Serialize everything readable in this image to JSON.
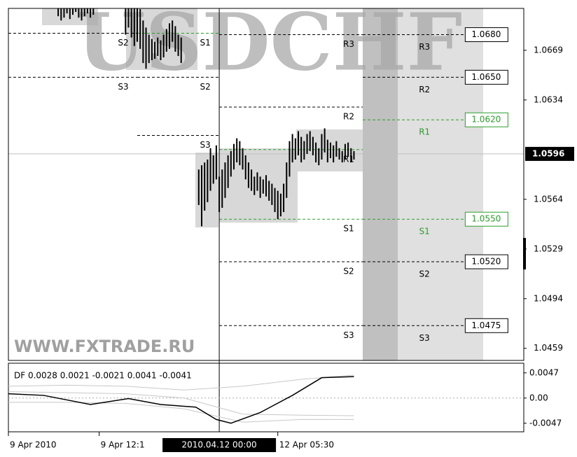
{
  "chart_data": [
    {
      "type": "hilo",
      "title": "USDCHF",
      "watermark": "WWW.FXTRADE.RU",
      "color": "#000000",
      "x": [
        17,
        18,
        19,
        20,
        21,
        22,
        23,
        24,
        25,
        26,
        27,
        28,
        29,
        40,
        41,
        42,
        43,
        44,
        45,
        46,
        47,
        48,
        49,
        50,
        51,
        52,
        53,
        54,
        55,
        56,
        57,
        58,
        59,
        65,
        66,
        67,
        68,
        69,
        70,
        71,
        72,
        73,
        74,
        75,
        76,
        77,
        78,
        79,
        80,
        81,
        82,
        83,
        84,
        85,
        86,
        87,
        88,
        89,
        90,
        91,
        92,
        93,
        94,
        95,
        96,
        97,
        98,
        99,
        100,
        101,
        102,
        103,
        104,
        105,
        106,
        107,
        108,
        109,
        110,
        111,
        112,
        113,
        114,
        115,
        116,
        117,
        118
      ],
      "highs": [
        1.0705,
        1.0705,
        1.0705,
        1.0705,
        1.0705,
        1.0705,
        1.0705,
        1.0705,
        1.0705,
        1.0705,
        1.0705,
        1.0705,
        1.0705,
        1.0705,
        1.0705,
        1.0705,
        1.07,
        1.0702,
        1.0698,
        1.069,
        1.0685,
        1.068,
        1.0677,
        1.0675,
        1.0678,
        1.0676,
        1.068,
        1.0684,
        1.0688,
        1.069,
        1.0686,
        1.068,
        1.0678,
        1.0585,
        1.0588,
        1.059,
        1.0592,
        1.06,
        1.0595,
        1.0602,
        1.058,
        1.0585,
        1.059,
        1.0595,
        1.0598,
        1.0603,
        1.0607,
        1.0605,
        1.06,
        1.0595,
        1.059,
        1.0585,
        1.058,
        1.0583,
        1.058,
        1.0578,
        1.0581,
        1.0577,
        1.0575,
        1.0572,
        1.057,
        1.0568,
        1.0575,
        1.059,
        1.0605,
        1.061,
        1.0607,
        1.0612,
        1.0608,
        1.0605,
        1.061,
        1.0612,
        1.0608,
        1.0604,
        1.06,
        1.061,
        1.0614,
        1.0606,
        1.0604,
        1.0602,
        1.0605,
        1.06,
        1.0598,
        1.0603,
        1.0604,
        1.06,
        1.0598
      ],
      "lows": [
        1.0693,
        1.069,
        1.0692,
        1.0695,
        1.0691,
        1.0694,
        1.0696,
        1.0692,
        1.069,
        1.0693,
        1.0695,
        1.0692,
        1.0694,
        1.068,
        1.0685,
        1.0678,
        1.0672,
        1.0675,
        1.067,
        1.066,
        1.0656,
        1.066,
        1.0662,
        1.0663,
        1.0665,
        1.0662,
        1.0664,
        1.0668,
        1.067,
        1.0675,
        1.0668,
        1.0665,
        1.066,
        1.056,
        1.0545,
        1.0556,
        1.0562,
        1.057,
        1.0575,
        1.0578,
        1.0555,
        1.0558,
        1.0565,
        1.0572,
        1.058,
        1.0585,
        1.059,
        1.0588,
        1.0585,
        1.0578,
        1.0572,
        1.057,
        1.0567,
        1.057,
        1.0565,
        1.0568,
        1.0566,
        1.0563,
        1.056,
        1.0555,
        1.055,
        1.0552,
        1.0555,
        1.0565,
        1.058,
        1.059,
        1.0592,
        1.0595,
        1.059,
        1.0592,
        1.0596,
        1.0598,
        1.0595,
        1.059,
        1.0588,
        1.0592,
        1.0597,
        1.059,
        1.0593,
        1.059,
        1.0594,
        1.0592,
        1.059,
        1.0592,
        1.0594,
        1.059,
        1.0592
      ],
      "xlim": [
        0,
        176
      ],
      "ylim": [
        1.045,
        1.0699
      ],
      "yticks": [
        1.0669,
        1.0634,
        1.0564,
        1.0529,
        1.0494,
        1.0459
      ],
      "xticks": [
        {
          "value": 0,
          "label": "9 Apr 2010"
        },
        {
          "value": 31,
          "label": "9 Apr 12:1"
        },
        {
          "value": 92,
          "label": "12 Apr 05:30"
        }
      ],
      "bid": 1.0596,
      "crosshair": {
        "x": 72,
        "label": "2010.04.12 00:00"
      },
      "levels": [
        {
          "name": "S2",
          "value": 1.0681,
          "start": 0,
          "end": 44,
          "color": "#000000"
        },
        {
          "name": "S1",
          "value": 1.0681,
          "start": 44,
          "end": 72,
          "color": "#2a9d2a"
        },
        {
          "name": "S3",
          "value": 1.065,
          "start": 0,
          "end": 44,
          "color": "#000000"
        },
        {
          "name": "S2",
          "value": 1.065,
          "start": 44,
          "end": 72,
          "color": "#000000"
        },
        {
          "name": "S3",
          "value": 1.0609,
          "start": 44,
          "end": 72,
          "color": "#000000"
        },
        {
          "name": "R3",
          "value": 1.068,
          "start": 72,
          "end": 121,
          "color": "#000000"
        },
        {
          "name": "R2",
          "value": 1.0629,
          "start": 72,
          "end": 121,
          "color": "#000000"
        },
        {
          "name": "R1",
          "value": 1.0599,
          "start": 72,
          "end": 121,
          "color": "#2a9d2a"
        },
        {
          "name": "S1",
          "value": 1.055,
          "start": 72,
          "end": 121,
          "color": "#2a9d2a"
        },
        {
          "name": "S2",
          "value": 1.052,
          "start": 72,
          "end": 121,
          "color": "#000000"
        },
        {
          "name": "S3",
          "value": 1.0475,
          "start": 72,
          "end": 121,
          "color": "#000000"
        }
      ],
      "pivots": {
        "start": 121,
        "end": 156,
        "names": [
          "R3",
          "R2",
          "R1",
          "S1",
          "S2",
          "S3"
        ],
        "values": [
          1.068,
          1.065,
          1.062,
          1.055,
          1.052,
          1.0475
        ],
        "value_labels": [
          "1.0680",
          "1.0650",
          "1.0620",
          "1.0550",
          "1.0520",
          "1.0475"
        ],
        "colors": [
          "#000000",
          "#000000",
          "#2a9d2a",
          "#2a9d2a",
          "#000000",
          "#000000"
        ]
      }
    },
    {
      "type": "line",
      "title": "DF 0.0028 0.0021 -0.0021 0.0041 -0.0041",
      "xlim": [
        0,
        176
      ],
      "ylim": [
        -0.0063,
        0.0065
      ],
      "yticks": [
        0.0047,
        {
          "value": 0,
          "label": "0.00"
        },
        -0.0047
      ],
      "series": [
        {
          "color": "#c8c8c8",
          "x": [
            0,
            20,
            40,
            60,
            80,
            100,
            118
          ],
          "values": [
            0.0022,
            0.0024,
            0.0022,
            0.0015,
            0.0022,
            0.0035,
            0.0043
          ]
        },
        {
          "color": "#c8c8c8",
          "x": [
            0,
            20,
            40,
            60,
            80,
            100,
            118
          ],
          "values": [
            0.0012,
            0.001,
            0.0008,
            0.0,
            -0.003,
            -0.0032,
            -0.0033
          ]
        },
        {
          "color": "#c8c8c8",
          "x": [
            0,
            20,
            40,
            60,
            80,
            100,
            118
          ],
          "values": [
            -0.0008,
            -0.0008,
            -0.001,
            -0.002,
            -0.0045,
            -0.004,
            -0.004
          ]
        },
        {
          "color": "#000000",
          "x": [
            0,
            12,
            28,
            41,
            52,
            64,
            71,
            76,
            86,
            97,
            107,
            118
          ],
          "values": [
            0.0008,
            0.0005,
            -0.0012,
            -0.0001,
            -0.0012,
            -0.0017,
            -0.004,
            -0.0047,
            -0.0027,
            0.0005,
            0.0038,
            0.004
          ]
        }
      ]
    }
  ]
}
